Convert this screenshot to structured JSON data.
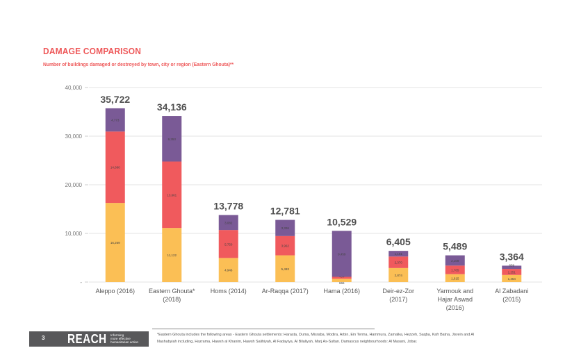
{
  "header": {
    "title": "DAMAGE COMPARISON",
    "subtitle": "Number of buildings damaged or destroyed by town, city or region (Eastern Ghouta)**"
  },
  "colors": {
    "accent": "#ee5859",
    "series_colors": [
      "#fbbf55",
      "#f05a5d",
      "#7a5a96"
    ]
  },
  "chart_data": {
    "type": "bar",
    "stacked": true,
    "title": "DAMAGE COMPARISON",
    "subtitle": "Number of buildings damaged or destroyed by town, city or region (Eastern Ghouta)**",
    "xlabel": "",
    "ylabel": "",
    "ylim": [
      0,
      40000
    ],
    "yticks": [
      0,
      10000,
      20000,
      30000,
      40000
    ],
    "ytick_labels": [
      "-",
      "10,000",
      "20,000",
      "30,000",
      "40,000"
    ],
    "grid": true,
    "legend": "none",
    "categories": [
      [
        "Aleppo (2016)"
      ],
      [
        "Eastern Ghouta*",
        "(2018)"
      ],
      [
        "Homs (2014)"
      ],
      [
        "Ar-Raqqa (2017)"
      ],
      [
        "Hama (2016)"
      ],
      [
        "Deir-ez-Zor",
        "(2017)"
      ],
      [
        "Yarmouk and",
        "Hajar Aswad",
        "(2016)"
      ],
      [
        "Al Zabadani",
        "(2015)"
      ]
    ],
    "series": [
      {
        "name": "bottom (yellow)",
        "color": "#fbbf55",
        "values": [
          16269,
          11122,
          4946,
          5493,
          666,
          2874,
          1615,
          1454
        ],
        "labels": [
          "16,269",
          "11,122",
          "4,946",
          "5,493",
          "666",
          "2,874",
          "1,615",
          "1,454"
        ]
      },
      {
        "name": "middle (red)",
        "color": "#f05a5d",
        "values": [
          14680,
          13661,
          5750,
          3962,
          404,
          2370,
          1765,
          1251
        ],
        "labels": [
          "14,680",
          "13,661",
          "5,750",
          "3,962",
          "404",
          "2,370",
          "1,765",
          "1,251"
        ]
      },
      {
        "name": "top (purple)",
        "color": "#7a5a96",
        "values": [
          4773,
          9353,
          3082,
          3326,
          9459,
          1161,
          2109,
          659
        ],
        "labels": [
          "4,773",
          "9,353",
          "3,082",
          "3,326",
          "9,459",
          "1,161",
          "2,109",
          "659"
        ]
      }
    ],
    "totals": [
      35722,
      34136,
      13778,
      12781,
      10529,
      6405,
      5489,
      3364
    ],
    "total_labels": [
      "35,722",
      "34,136",
      "13,778",
      "12,781",
      "10,529",
      "6,405",
      "5,489",
      "3,364"
    ]
  },
  "footer": {
    "page_number": "3",
    "logo": "REACH",
    "tagline": "Informing\nmore effective\nhumanitarian action",
    "footnote": "*Eastern Ghouta includes the following areas - Eastern Ghouta settlements: Harasta, Duma, Misraba, Modira, Arbin, Ein Terma, Hammura, Zamalka, Hezzeh, Saqba, Kafr Batna, Jisrein and Al Nashabyiah including, Hazrama, Hawsh al Khanim, Hawsh Salihiyah, Al Fadayiya, Al Bilaliyah, Marj As-Sultan. Damascus neighbourhoods: Al Masani, Jobar."
  }
}
